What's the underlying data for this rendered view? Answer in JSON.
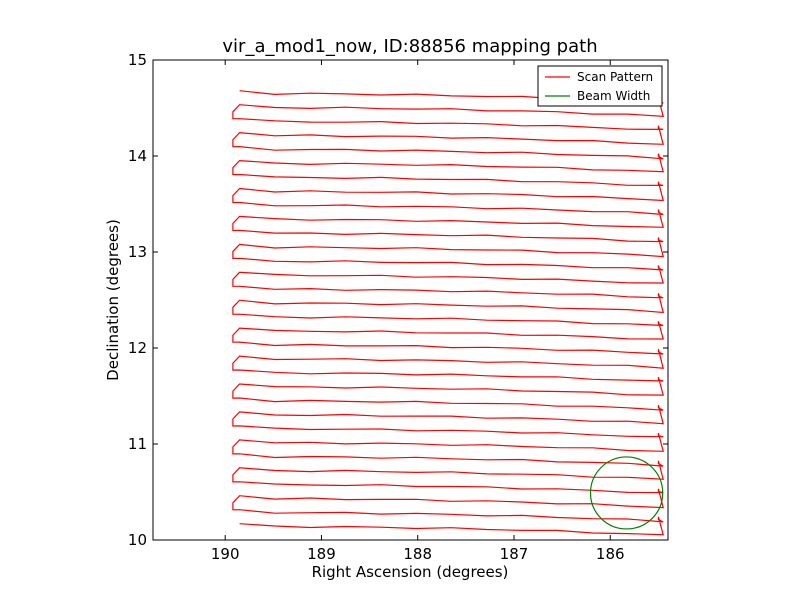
{
  "chart_data": {
    "type": "line",
    "title": "vir_a_mod1_now, ID:88856 mapping path",
    "xlabel": "Right Ascension (degrees)",
    "ylabel": "Declination (degrees)",
    "xlim": [
      190.75,
      185.4
    ],
    "ylim": [
      10,
      15
    ],
    "x_ticks": [
      "190",
      "189",
      "188",
      "187",
      "186"
    ],
    "x_tick_values": [
      190,
      189,
      188,
      187,
      186
    ],
    "y_ticks": [
      "10",
      "11",
      "12",
      "13",
      "14",
      "15"
    ],
    "y_tick_values": [
      10,
      11,
      12,
      13,
      14,
      15
    ],
    "grid": false,
    "legend_position": "top-right",
    "series": [
      {
        "name": "Scan Pattern",
        "color": "#ff0000",
        "pass_count": 32,
        "dec_start": 10.14,
        "dec_end": 14.65,
        "ra_start": 189.85,
        "ra_end": 185.45
      },
      {
        "name": "Beam Width",
        "color": "#008000",
        "circle_center": [
          185.83,
          10.49
        ],
        "circle_radius": 0.375
      }
    ]
  }
}
